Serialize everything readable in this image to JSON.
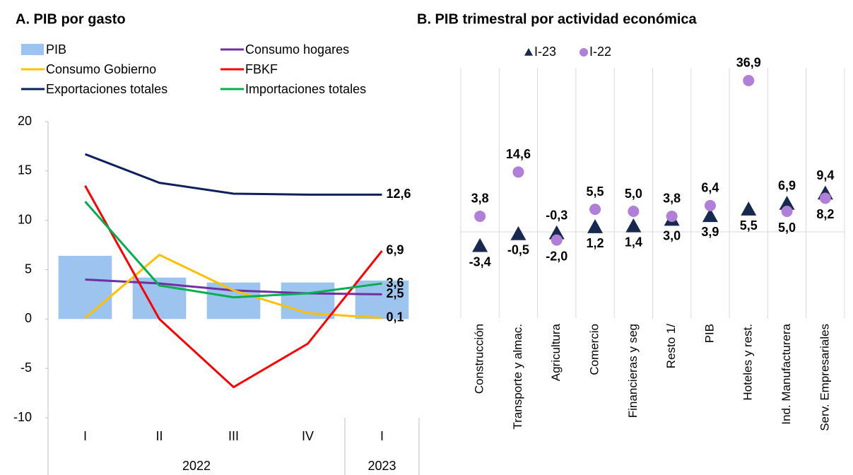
{
  "chart_data": [
    {
      "type": "combo",
      "title": "A.   PIB por gasto",
      "categories": [
        "I",
        "II",
        "III",
        "IV",
        "I"
      ],
      "groups": [
        {
          "label": "2022",
          "span": 4
        },
        {
          "label": "2023",
          "span": 1
        }
      ],
      "ylim": [
        -10,
        20
      ],
      "yticks": [
        -10,
        -5,
        0,
        5,
        10,
        15,
        20
      ],
      "series": [
        {
          "name": "PIB",
          "type": "bar",
          "color": "#9dc3ef",
          "values": [
            6.4,
            4.2,
            3.7,
            3.7,
            3.9
          ]
        },
        {
          "name": "Consumo hogares",
          "type": "line",
          "color": "#7030a0",
          "values": [
            4.0,
            3.6,
            2.9,
            2.6,
            2.5
          ],
          "value_labels": [
            null,
            null,
            null,
            null,
            "2,5"
          ]
        },
        {
          "name": "Consumo Gobierno",
          "type": "line",
          "color": "#ffc000",
          "values": [
            0.1,
            6.5,
            2.9,
            0.6,
            0.1
          ],
          "value_labels": [
            null,
            null,
            null,
            null,
            "0,1"
          ]
        },
        {
          "name": "FBKF",
          "type": "line",
          "color": "#ff0000",
          "values": [
            13.5,
            0.0,
            -6.9,
            -2.5,
            6.9
          ],
          "value_labels": [
            null,
            null,
            null,
            null,
            "6,9"
          ]
        },
        {
          "name": "Exportaciones totales",
          "type": "line",
          "color": "#0d1f5c",
          "values": [
            16.7,
            13.8,
            12.7,
            12.6,
            12.6
          ],
          "value_labels": [
            null,
            null,
            null,
            null,
            "12,6"
          ]
        },
        {
          "name": "Importaciones totales",
          "type": "line",
          "color": "#00b050",
          "values": [
            11.9,
            3.4,
            2.2,
            2.6,
            3.6
          ],
          "value_labels": [
            null,
            null,
            null,
            null,
            "3,6"
          ]
        }
      ]
    },
    {
      "type": "dot",
      "title": "B. PIB trimestral por actividad económica",
      "categories": [
        "Construcción",
        "Transporte y almac.",
        "Agricultura",
        "Comercio",
        "Financieras y seg",
        "Resto 1/",
        "PIB",
        "Hoteles y rest.",
        "Ind. Manufacturera",
        "Serv. Empresariales"
      ],
      "ylim": [
        -20,
        40
      ],
      "series": [
        {
          "name": "I-23",
          "marker": "triangle",
          "color": "#17294f",
          "values": [
            -3.4,
            -0.5,
            -0.3,
            1.2,
            1.4,
            3.0,
            3.9,
            5.5,
            6.9,
            9.4
          ],
          "value_labels": [
            "-3,4",
            "-0,5",
            "-0,3",
            "1,2",
            "1,4",
            "3,0",
            "3,9",
            "5,5",
            "6,9",
            "9,4"
          ]
        },
        {
          "name": "I-22",
          "marker": "circle",
          "color": "#b07fd8",
          "values": [
            3.8,
            14.6,
            -2.0,
            5.5,
            5.0,
            3.8,
            6.4,
            36.9,
            5.0,
            8.2
          ],
          "value_labels": [
            "3,8",
            "14,6",
            "-2,0",
            "5,5",
            "5,0",
            "3,8",
            "6,4",
            "36,9",
            "5,0",
            "8,2"
          ]
        }
      ]
    }
  ]
}
